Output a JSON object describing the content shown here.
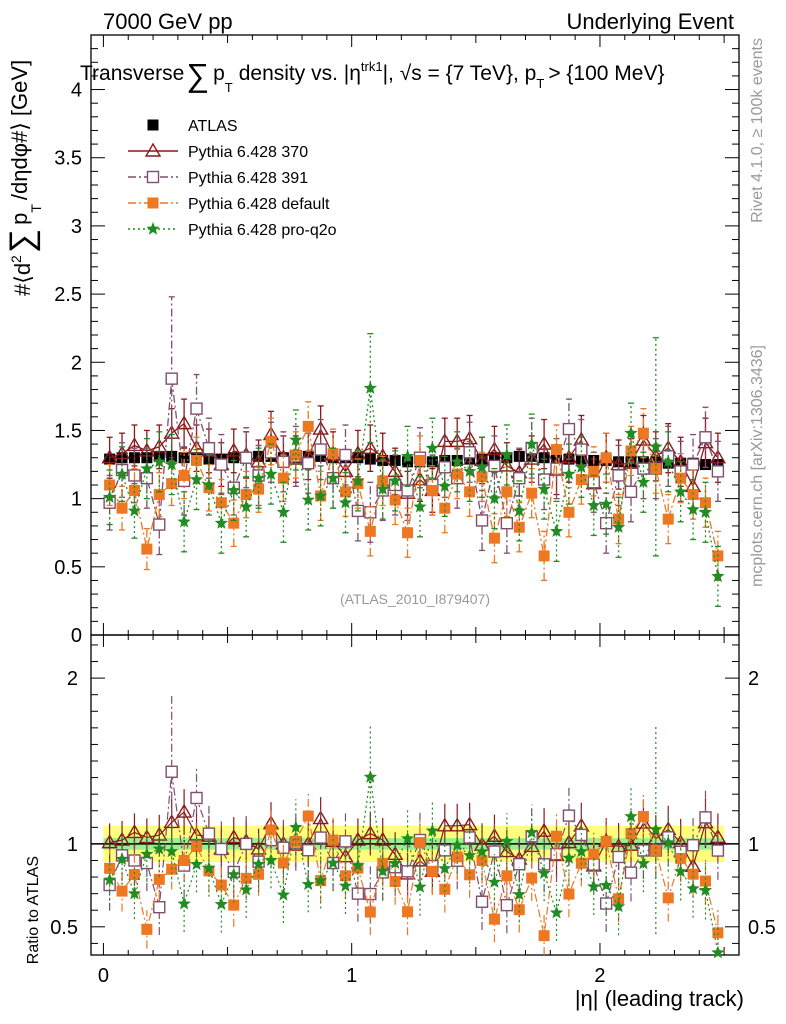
{
  "header": {
    "left": "7000 GeV pp",
    "right": "Underlying Event"
  },
  "chart_data": {
    "type": "scatter",
    "title": "Transverse ∑ p_T density vs. |η^trk1|, √s = {7 TeV}, p_T > {100 MeV}",
    "title_parts": {
      "t1": "Transverse",
      "sum": "∑",
      "p": "p",
      "T": "T",
      "t2": "density vs. |η",
      "trk1": "trk1",
      "t3": "|, √s = {7 TeV}, p",
      "t4": "> {100 MeV}"
    },
    "ylabel": "#⟨d² ∑ p_T /dηdφ#⟩ [GeV]",
    "ylabel_parts": {
      "a": "#⟨d",
      "sq": "2",
      "sum": "∑",
      "p": "p",
      "T": "T",
      "b": "/dηdφ#⟩ [GeV]"
    },
    "xlabel": "|η| (leading track)",
    "ratio_ylabel": "Ratio to ATLAS",
    "analysis_label": "(ATLAS_2010_I879407)",
    "side_label_top": "Rivet 4.1.0, ≥ 100k events",
    "side_label_bottom": "mcplots.cern.ch [arXiv:1306.3436]",
    "xlim": [
      -0.05,
      2.56
    ],
    "ylim": [
      0,
      4.4
    ],
    "ratio_ylim": [
      0.33,
      2.26
    ],
    "x_ticks": [
      {
        "value": 0,
        "label": "0"
      },
      {
        "value": 1,
        "label": "1"
      },
      {
        "value": 2,
        "label": "2"
      }
    ],
    "y_ticks": [
      {
        "value": 0,
        "label": "0"
      },
      {
        "value": 0.5,
        "label": "0.5"
      },
      {
        "value": 1,
        "label": "1"
      },
      {
        "value": 1.5,
        "label": "1.5"
      },
      {
        "value": 2,
        "label": "2"
      },
      {
        "value": 2.5,
        "label": "2.5"
      },
      {
        "value": 3,
        "label": "3"
      },
      {
        "value": 3.5,
        "label": "3.5"
      },
      {
        "value": 4,
        "label": "4"
      }
    ],
    "ratio_y_ticks": [
      {
        "value": 0.5,
        "label": "0.5"
      },
      {
        "value": 1,
        "label": "1"
      },
      {
        "value": 2,
        "label": "2"
      }
    ],
    "x": [
      0.025,
      0.075,
      0.125,
      0.175,
      0.225,
      0.275,
      0.325,
      0.375,
      0.425,
      0.475,
      0.525,
      0.575,
      0.625,
      0.675,
      0.725,
      0.775,
      0.825,
      0.875,
      0.925,
      0.975,
      1.025,
      1.075,
      1.125,
      1.175,
      1.225,
      1.275,
      1.325,
      1.375,
      1.425,
      1.475,
      1.525,
      1.575,
      1.625,
      1.675,
      1.725,
      1.775,
      1.825,
      1.875,
      1.925,
      1.975,
      2.025,
      2.075,
      2.125,
      2.175,
      2.225,
      2.275,
      2.325,
      2.375,
      2.425,
      2.475
    ],
    "series": [
      {
        "name": "ATLAS",
        "color": "#000000",
        "marker": "square-filled",
        "line": "none",
        "values": [
          1.29,
          1.3,
          1.3,
          1.3,
          1.31,
          1.31,
          1.3,
          1.3,
          1.29,
          1.29,
          1.3,
          1.3,
          1.31,
          1.31,
          1.3,
          1.3,
          1.31,
          1.31,
          1.3,
          1.3,
          1.3,
          1.29,
          1.28,
          1.28,
          1.27,
          1.27,
          1.27,
          1.28,
          1.28,
          1.29,
          1.29,
          1.3,
          1.3,
          1.31,
          1.31,
          1.3,
          1.3,
          1.29,
          1.29,
          1.28,
          1.28,
          1.27,
          1.27,
          1.27,
          1.27,
          1.26,
          1.26,
          1.26,
          1.25,
          1.25
        ],
        "errors": [
          0.03,
          0.03,
          0.03,
          0.03,
          0.03,
          0.03,
          0.03,
          0.03,
          0.03,
          0.03,
          0.03,
          0.03,
          0.03,
          0.03,
          0.03,
          0.03,
          0.03,
          0.03,
          0.03,
          0.03,
          0.03,
          0.03,
          0.03,
          0.03,
          0.03,
          0.03,
          0.03,
          0.03,
          0.03,
          0.03,
          0.03,
          0.03,
          0.03,
          0.03,
          0.03,
          0.03,
          0.03,
          0.03,
          0.03,
          0.03,
          0.03,
          0.03,
          0.03,
          0.03,
          0.03,
          0.03,
          0.03,
          0.03,
          0.03,
          0.03
        ]
      },
      {
        "name": "Pythia 6.428 370",
        "color": "#8b1a1a",
        "marker": "triangle-open",
        "line": "solid",
        "values": [
          1.3,
          1.33,
          1.39,
          1.35,
          1.38,
          1.48,
          1.55,
          1.37,
          1.35,
          1.25,
          1.35,
          1.32,
          1.27,
          1.47,
          1.3,
          1.29,
          1.31,
          1.51,
          1.32,
          1.2,
          1.33,
          1.37,
          1.31,
          1.2,
          1.04,
          1.14,
          1.06,
          1.42,
          1.42,
          1.44,
          1.28,
          1.36,
          1.24,
          1.19,
          1.29,
          1.4,
          1.21,
          1.3,
          1.43,
          1.11,
          1.3,
          1.25,
          1.26,
          1.43,
          1.31,
          1.37,
          1.27,
          1.09,
          1.41,
          1.3
        ],
        "errors": [
          0.15,
          0.15,
          0.15,
          0.15,
          0.16,
          0.18,
          0.18,
          0.17,
          0.16,
          0.16,
          0.16,
          0.17,
          0.16,
          0.17,
          0.16,
          0.17,
          0.17,
          0.17,
          0.17,
          0.16,
          0.17,
          0.17,
          0.17,
          0.17,
          0.16,
          0.16,
          0.16,
          0.17,
          0.17,
          0.17,
          0.17,
          0.17,
          0.17,
          0.17,
          0.17,
          0.18,
          0.18,
          0.18,
          0.18,
          0.18,
          0.18,
          0.18,
          0.18,
          0.18,
          0.18,
          0.18,
          0.18,
          0.18,
          0.18,
          0.18
        ]
      },
      {
        "name": "Pythia 6.428 391",
        "color": "#7f4f6f",
        "marker": "square-open",
        "line": "dashdot",
        "values": [
          0.97,
          1.21,
          1.17,
          1.15,
          0.81,
          1.88,
          1.13,
          1.66,
          1.37,
          1.25,
          1.08,
          1.3,
          1.17,
          1.34,
          1.27,
          1.31,
          1.26,
          1.36,
          1.15,
          1.32,
          0.91,
          0.9,
          1.06,
          1.1,
          1.06,
          1.3,
          1.1,
          1.23,
          1.15,
          1.34,
          0.84,
          1.24,
          0.82,
          1.15,
          1.37,
          1.14,
          1.22,
          1.51,
          1.36,
          1.12,
          0.82,
          1.17,
          1.05,
          1.22,
          1.22,
          1.31,
          1.2,
          1.25,
          1.45,
          1.2
        ],
        "errors": [
          0.2,
          0.2,
          0.2,
          0.22,
          0.22,
          0.6,
          0.25,
          0.25,
          0.22,
          0.22,
          0.2,
          0.22,
          0.22,
          0.22,
          0.22,
          0.22,
          0.22,
          0.22,
          0.22,
          0.22,
          0.22,
          0.22,
          0.22,
          0.22,
          0.22,
          0.22,
          0.22,
          0.22,
          0.22,
          0.22,
          0.22,
          0.22,
          0.22,
          0.22,
          0.22,
          0.22,
          0.22,
          0.22,
          0.22,
          0.22,
          0.22,
          0.22,
          0.22,
          0.22,
          0.22,
          0.22,
          0.22,
          0.22,
          0.22,
          0.22
        ]
      },
      {
        "name": "Pythia 6.428 default",
        "color": "#ee7722",
        "marker": "square-filled",
        "line": "dashdot",
        "values": [
          1.1,
          0.93,
          1.06,
          0.63,
          1.03,
          1.11,
          1.17,
          1.28,
          1.08,
          0.97,
          0.82,
          1.03,
          1.07,
          1.42,
          1.15,
          1.32,
          1.53,
          1.02,
          1.33,
          1.05,
          1.11,
          0.76,
          1.13,
          0.99,
          0.75,
          1.28,
          1.06,
          0.93,
          1.18,
          1.05,
          1.16,
          0.71,
          1.05,
          0.79,
          1.04,
          0.58,
          1.36,
          0.9,
          1.14,
          1.2,
          1.3,
          0.85,
          1.35,
          1.48,
          1.22,
          0.85,
          1.15,
          1.03,
          0.97,
          0.58
        ],
        "errors": [
          0.15,
          0.16,
          0.16,
          0.15,
          0.16,
          0.16,
          0.17,
          0.17,
          0.17,
          0.17,
          0.17,
          0.17,
          0.17,
          0.17,
          0.17,
          0.17,
          0.18,
          0.18,
          0.18,
          0.18,
          0.18,
          0.18,
          0.18,
          0.18,
          0.18,
          0.18,
          0.18,
          0.18,
          0.18,
          0.18,
          0.18,
          0.18,
          0.18,
          0.18,
          0.18,
          0.18,
          0.18,
          0.18,
          0.18,
          0.18,
          0.18,
          0.18,
          0.18,
          0.18,
          0.18,
          0.18,
          0.18,
          0.18,
          0.18,
          0.18
        ]
      },
      {
        "name": "Pythia 6.428 pro-q2o",
        "color": "#228b22",
        "marker": "star",
        "line": "dotted",
        "values": [
          1.01,
          1.18,
          0.91,
          1.22,
          1.27,
          1.25,
          0.83,
          1.14,
          1.1,
          0.82,
          1.06,
          0.94,
          1.15,
          1.18,
          0.9,
          1.43,
          0.99,
          1.02,
          1.15,
          0.97,
          1.13,
          1.81,
          1.07,
          1.13,
          1.31,
          0.94,
          1.37,
          1.09,
          1.27,
          1.2,
          1.23,
          1.0,
          1.32,
          0.91,
          1.4,
          1.07,
          0.76,
          1.18,
          1.23,
          0.95,
          0.96,
          0.79,
          1.48,
          1.12,
          1.38,
          1.27,
          1.05,
          0.92,
          0.9,
          0.43
        ],
        "errors": [
          0.2,
          0.2,
          0.2,
          0.22,
          0.22,
          0.22,
          0.22,
          0.22,
          0.22,
          0.22,
          0.22,
          0.22,
          0.22,
          0.22,
          0.22,
          0.22,
          0.22,
          0.22,
          0.22,
          0.22,
          0.22,
          0.4,
          0.22,
          0.22,
          0.22,
          0.22,
          0.22,
          0.22,
          0.22,
          0.22,
          0.22,
          0.22,
          0.22,
          0.22,
          0.22,
          0.22,
          0.22,
          0.22,
          0.22,
          0.22,
          0.22,
          0.22,
          0.22,
          0.22,
          0.8,
          0.22,
          0.22,
          0.22,
          0.22,
          0.22
        ]
      }
    ],
    "ratio_band": {
      "inner": [
        0.965,
        1.035
      ],
      "outer": [
        0.89,
        1.11
      ],
      "inner_color": "#90ee90",
      "outer_color": "#ffff66"
    }
  }
}
